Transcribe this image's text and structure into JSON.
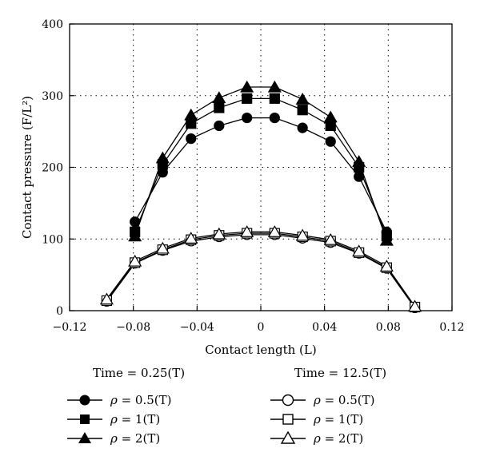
{
  "chart_data": {
    "type": "line",
    "xlabel": "Contact length (L)",
    "ylabel": "Contact pressure (F/L²)",
    "xlim": [
      -0.12,
      0.12
    ],
    "ylim": [
      0,
      400
    ],
    "x_ticks": [
      "−0.12",
      "−0.08",
      "−0.04",
      "0",
      "0.04",
      "0.08",
      "0.12"
    ],
    "y_ticks": [
      "0",
      "100",
      "200",
      "300",
      "400"
    ],
    "grid": "dotted",
    "groups": [
      {
        "title": "Time = 0.25(T)",
        "series": [
          {
            "name": "ρ = 0.5(T)",
            "marker": "circle",
            "filled": true,
            "x": [
              -0.079,
              -0.0616,
              -0.0438,
              -0.0262,
              -0.0087,
              0.0087,
              0.0262,
              0.0438,
              0.0616,
              0.079
            ],
            "y": [
              124,
              193,
              240,
              258,
              269,
              269,
              255,
              236,
              187,
              110
            ]
          },
          {
            "name": "ρ = 1(T)",
            "marker": "square",
            "filled": true,
            "x": [
              -0.079,
              -0.0616,
              -0.0438,
              -0.0262,
              -0.0087,
              0.0087,
              0.0262,
              0.0438,
              0.0616,
              0.079
            ],
            "y": [
              110,
              204,
              261,
              283,
              296,
              296,
              280,
              258,
              200,
              104
            ]
          },
          {
            "name": "ρ = 2(T)",
            "marker": "triangle",
            "filled": true,
            "x": [
              -0.079,
              -0.0616,
              -0.0438,
              -0.0262,
              -0.0087,
              0.0087,
              0.0262,
              0.0438,
              0.0616,
              0.079
            ],
            "y": [
              104,
              213,
              273,
              297,
              312,
              312,
              295,
              270,
              208,
              98
            ]
          }
        ]
      },
      {
        "title": "Time = 12.5(T)",
        "series": [
          {
            "name": "ρ = 0.5(T)",
            "marker": "circle",
            "filled": false,
            "x": [
              -0.0967,
              -0.079,
              -0.0616,
              -0.0438,
              -0.0262,
              -0.0087,
              0.0087,
              0.0262,
              0.0438,
              0.0616,
              0.079,
              0.0967
            ],
            "y": [
              13,
              66,
              84,
              97,
              103,
              106,
              106,
              101,
              95,
              80,
              59,
              4
            ]
          },
          {
            "name": "ρ = 1(T)",
            "marker": "square",
            "filled": false,
            "x": [
              -0.0967,
              -0.079,
              -0.0616,
              -0.0438,
              -0.0262,
              -0.0087,
              0.0087,
              0.0262,
              0.0438,
              0.0616,
              0.079,
              0.0967
            ],
            "y": [
              14,
              67,
              85,
              99,
              105,
              108,
              108,
              103,
              97,
              81,
              60,
              5
            ]
          },
          {
            "name": "ρ = 2(T)",
            "marker": "triangle",
            "filled": false,
            "x": [
              -0.0967,
              -0.079,
              -0.0616,
              -0.0438,
              -0.0262,
              -0.0087,
              0.0087,
              0.0262,
              0.0438,
              0.0616,
              0.079,
              0.0967
            ],
            "y": [
              16,
              69,
              87,
              101,
              107,
              110,
              110,
              105,
              99,
              83,
              62,
              6
            ]
          }
        ]
      }
    ]
  }
}
